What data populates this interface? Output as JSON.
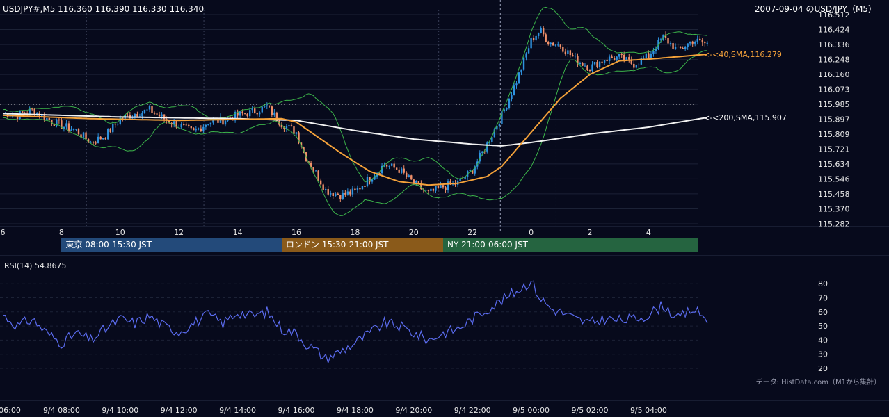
{
  "header": {
    "symbol_label": "USDJPY#,M5 116.360 116.390 116.330 116.340",
    "title": "2007-09-04 のUSD/JPY（M5）"
  },
  "colors": {
    "background": "#070a1c",
    "candle_up": "#2e93e0",
    "candle_down": "#f0906a",
    "sma40": "#f5a23a",
    "sma200": "#f2f2f2",
    "bollinger": "#3cb44a",
    "rsi": "#5b6cf0",
    "tokyo": "#234a7a",
    "london": "#8a5a1a",
    "ny": "#256440"
  },
  "sessions": [
    {
      "label": "東京 08:00-15:30 JST",
      "start_hour": 8.0,
      "end_hour": 15.5
    },
    {
      "label": "ロンドン 15:30-21:00 JST",
      "start_hour": 15.5,
      "end_hour": 21.0
    },
    {
      "label": "NY 21:00-06:00 JST",
      "start_hour": 21.0,
      "end_hour": 30.0
    }
  ],
  "chart_data": [
    {
      "type": "candlestick",
      "title": "USDJPY#,M5",
      "y_ticks": [
        "116.512",
        "116.424",
        "116.336",
        "116.248",
        "116.160",
        "116.073",
        "115.985",
        "115.897",
        "115.809",
        "115.721",
        "115.634",
        "115.546",
        "115.458",
        "115.370",
        "115.282"
      ],
      "ylim": [
        115.282,
        116.512
      ],
      "x_hour_range": [
        6.0,
        30.0
      ],
      "x_ticks": [
        {
          "label": "6",
          "hour": 6
        },
        {
          "label": "8",
          "hour": 8
        },
        {
          "label": "10",
          "hour": 10
        },
        {
          "label": "12",
          "hour": 12
        },
        {
          "label": "14",
          "hour": 14
        },
        {
          "label": "16",
          "hour": 16
        },
        {
          "label": "18",
          "hour": 18
        },
        {
          "label": "20",
          "hour": 20
        },
        {
          "label": "22",
          "hour": 22
        },
        {
          "label": "0",
          "hour": 24
        },
        {
          "label": "2",
          "hour": 26
        },
        {
          "label": "4",
          "hour": 28
        }
      ],
      "dotted_reference_level": 115.985,
      "annotations": [
        {
          "text": "<-<40,SMA,116.279",
          "value": 116.279,
          "series": "sma40"
        },
        {
          "text": "<-<200,SMA,115.907",
          "value": 115.907,
          "series": "sma200"
        }
      ],
      "close_anchors": [
        [
          6.0,
          115.93
        ],
        [
          6.5,
          115.92
        ],
        [
          7.0,
          115.95
        ],
        [
          7.5,
          115.9
        ],
        [
          8.0,
          115.86
        ],
        [
          8.5,
          115.83
        ],
        [
          9.0,
          115.76
        ],
        [
          9.5,
          115.8
        ],
        [
          10.0,
          115.9
        ],
        [
          10.5,
          115.93
        ],
        [
          11.0,
          115.95
        ],
        [
          11.5,
          115.9
        ],
        [
          12.0,
          115.86
        ],
        [
          12.5,
          115.82
        ],
        [
          13.0,
          115.88
        ],
        [
          13.5,
          115.89
        ],
        [
          14.0,
          115.92
        ],
        [
          14.5,
          115.94
        ],
        [
          15.0,
          115.97
        ],
        [
          15.5,
          115.87
        ],
        [
          16.0,
          115.82
        ],
        [
          16.3,
          115.68
        ],
        [
          16.6,
          115.6
        ],
        [
          17.0,
          115.48
        ],
        [
          17.5,
          115.45
        ],
        [
          18.0,
          115.47
        ],
        [
          18.5,
          115.55
        ],
        [
          19.0,
          115.63
        ],
        [
          19.5,
          115.6
        ],
        [
          20.0,
          115.52
        ],
        [
          20.5,
          115.46
        ],
        [
          21.0,
          115.5
        ],
        [
          21.5,
          115.52
        ],
        [
          22.0,
          115.6
        ],
        [
          22.5,
          115.75
        ],
        [
          23.0,
          115.92
        ],
        [
          23.5,
          116.12
        ],
        [
          24.0,
          116.36
        ],
        [
          24.3,
          116.42
        ],
        [
          24.6,
          116.35
        ],
        [
          25.0,
          116.33
        ],
        [
          25.5,
          116.25
        ],
        [
          26.0,
          116.2
        ],
        [
          26.5,
          116.25
        ],
        [
          27.0,
          116.26
        ],
        [
          27.5,
          116.22
        ],
        [
          28.0,
          116.27
        ],
        [
          28.5,
          116.38
        ],
        [
          29.0,
          116.3
        ],
        [
          29.5,
          116.36
        ],
        [
          30.0,
          116.34
        ]
      ],
      "sma40_anchors": [
        [
          6.0,
          115.92
        ],
        [
          9.0,
          115.9
        ],
        [
          12.0,
          115.89
        ],
        [
          15.5,
          115.9
        ],
        [
          16.0,
          115.88
        ],
        [
          16.5,
          115.82
        ],
        [
          17.5,
          115.7
        ],
        [
          18.5,
          115.59
        ],
        [
          19.5,
          115.53
        ],
        [
          20.5,
          115.51
        ],
        [
          21.5,
          115.52
        ],
        [
          22.5,
          115.56
        ],
        [
          23.0,
          115.62
        ],
        [
          24.0,
          115.82
        ],
        [
          25.0,
          116.02
        ],
        [
          26.0,
          116.16
        ],
        [
          27.0,
          116.24
        ],
        [
          28.0,
          116.25
        ],
        [
          30.0,
          116.279
        ]
      ],
      "sma200_anchors": [
        [
          6.0,
          115.93
        ],
        [
          10.0,
          115.91
        ],
        [
          14.0,
          115.9
        ],
        [
          16.0,
          115.89
        ],
        [
          18.0,
          115.83
        ],
        [
          20.0,
          115.78
        ],
        [
          22.0,
          115.75
        ],
        [
          23.0,
          115.74
        ],
        [
          24.0,
          115.76
        ],
        [
          26.0,
          115.81
        ],
        [
          28.0,
          115.85
        ],
        [
          30.0,
          115.907
        ]
      ]
    },
    {
      "type": "line",
      "title": "RSI(14) 54.8675",
      "y_ticks": [
        80,
        70,
        60,
        50,
        40,
        30,
        20
      ],
      "ylim": [
        15,
        90
      ],
      "x_ticks": [
        "06:00",
        "9/4 08:00",
        "9/4 10:00",
        "9/4 12:00",
        "9/4 14:00",
        "9/4 16:00",
        "9/4 18:00",
        "9/4 20:00",
        "9/4 22:00",
        "9/5 00:00",
        "9/5 02:00",
        "9/5 04:00"
      ],
      "anchors": [
        [
          6.0,
          58
        ],
        [
          6.5,
          50
        ],
        [
          7.0,
          55
        ],
        [
          7.5,
          45
        ],
        [
          8.0,
          38
        ],
        [
          8.5,
          45
        ],
        [
          9.0,
          40
        ],
        [
          9.5,
          48
        ],
        [
          10.0,
          55
        ],
        [
          10.5,
          52
        ],
        [
          11.0,
          57
        ],
        [
          11.5,
          50
        ],
        [
          12.0,
          46
        ],
        [
          12.5,
          52
        ],
        [
          13.0,
          58
        ],
        [
          13.5,
          52
        ],
        [
          14.0,
          60
        ],
        [
          14.5,
          57
        ],
        [
          15.0,
          60
        ],
        [
          15.5,
          48
        ],
        [
          16.0,
          45
        ],
        [
          16.3,
          38
        ],
        [
          16.7,
          32
        ],
        [
          17.0,
          27
        ],
        [
          17.5,
          32
        ],
        [
          18.0,
          38
        ],
        [
          18.5,
          45
        ],
        [
          19.0,
          52
        ],
        [
          19.5,
          50
        ],
        [
          20.0,
          45
        ],
        [
          20.5,
          40
        ],
        [
          21.0,
          45
        ],
        [
          21.5,
          48
        ],
        [
          22.0,
          55
        ],
        [
          22.5,
          62
        ],
        [
          23.0,
          68
        ],
        [
          23.5,
          75
        ],
        [
          24.0,
          82
        ],
        [
          24.3,
          70
        ],
        [
          24.7,
          62
        ],
        [
          25.0,
          60
        ],
        [
          25.5,
          55
        ],
        [
          26.0,
          52
        ],
        [
          26.5,
          55
        ],
        [
          27.0,
          54
        ],
        [
          27.5,
          55
        ],
        [
          28.0,
          58
        ],
        [
          28.5,
          65
        ],
        [
          29.0,
          55
        ],
        [
          29.5,
          62
        ],
        [
          30.0,
          55
        ]
      ]
    }
  ],
  "footer": {
    "credit": "データ: HistData.com（M1から集計）"
  }
}
